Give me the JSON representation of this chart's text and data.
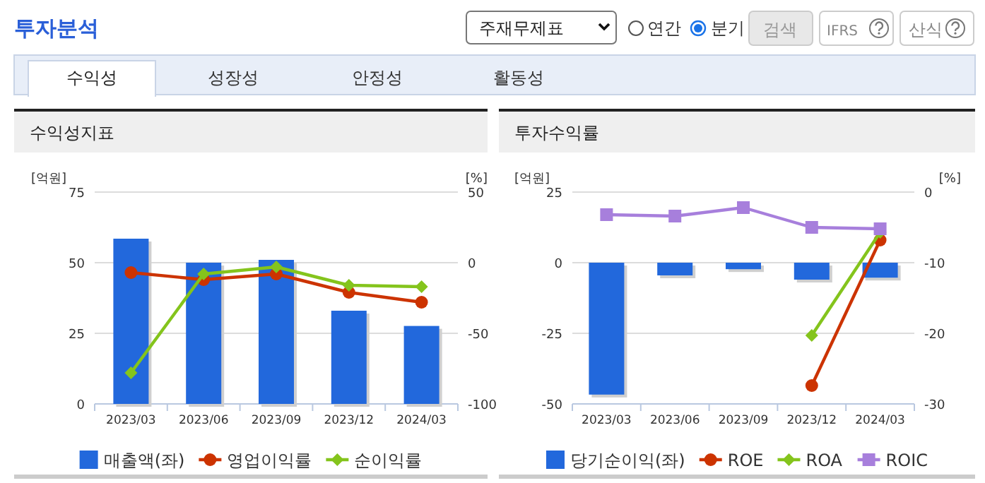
{
  "chart_data": [
    {
      "type": "other",
      "annotations": [
        "투자분석",
        "주재무제표",
        "연간",
        "분기",
        "검색",
        "IFRS",
        "산식",
        "수익성",
        "성장성",
        "안정성",
        "활동성"
      ]
    },
    {
      "type": "bar",
      "title": "수익성지표",
      "categories": [
        "2023/03",
        "2023/06",
        "2023/09",
        "2023/12",
        "2024/03"
      ],
      "ylabel": "[억원]",
      "y2label": "[%]",
      "ylim": [
        0,
        75
      ],
      "yticks": [
        0,
        25,
        50,
        75
      ],
      "y2lim": [
        -100,
        50
      ],
      "y2ticks": [
        -100,
        -50,
        0,
        50
      ],
      "grid": "y",
      "legend": "bottom",
      "series": [
        {
          "name": "매출액(좌)",
          "type": "bar",
          "color": "#2268dc",
          "values": [
            58.5,
            50,
            51,
            33,
            27.6
          ]
        },
        {
          "name": "영업이익률",
          "type": "line",
          "axis": "y2",
          "color": "#cc3300",
          "marker": "circle",
          "values": [
            -7,
            -12,
            -8,
            -21,
            -28
          ]
        },
        {
          "name": "순이익률",
          "type": "line",
          "axis": "y2",
          "color": "#84c41c",
          "marker": "diamond",
          "values": [
            -78,
            -8,
            -3,
            -16,
            -17
          ]
        }
      ]
    },
    {
      "type": "bar",
      "title": "투자수익률",
      "categories": [
        "2023/03",
        "2023/06",
        "2023/09",
        "2023/12",
        "2024/03"
      ],
      "ylabel": "[억원]",
      "y2label": "[%]",
      "ylim": [
        -50,
        25
      ],
      "yticks": [
        -50,
        -25,
        0,
        25
      ],
      "y2lim": [
        -30,
        0
      ],
      "y2ticks": [
        -30,
        -20,
        -10,
        0
      ],
      "grid": "y",
      "legend": "bottom",
      "series": [
        {
          "name": "당기순이익(좌)",
          "type": "bar",
          "color": "#2268dc",
          "values": [
            -46.7,
            -4.5,
            -2.3,
            -6,
            -5.3
          ]
        },
        {
          "name": "ROE",
          "type": "line",
          "axis": "y2",
          "color": "#cc3300",
          "marker": "circle",
          "values": [
            null,
            null,
            null,
            -27.4,
            -6.8
          ]
        },
        {
          "name": "ROA",
          "type": "line",
          "axis": "y2",
          "color": "#84c41c",
          "marker": "diamond",
          "values": [
            null,
            null,
            null,
            -20.3,
            -5.7
          ]
        },
        {
          "name": "ROIC",
          "type": "line",
          "axis": "y2",
          "color": "#a77fdc",
          "marker": "square",
          "values": [
            -3.2,
            -3.4,
            -2.2,
            -5,
            -5.2
          ]
        }
      ]
    }
  ]
}
